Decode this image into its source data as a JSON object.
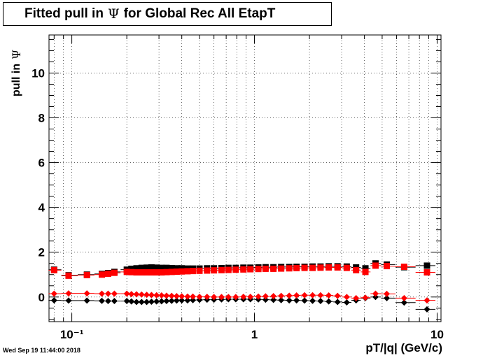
{
  "title": {
    "prefix": "Fitted pull in",
    "symbol": "Ψ",
    "suffix": "for Global Rec All EtapT"
  },
  "ylabel": {
    "text": "pull in",
    "symbol": "Ψ"
  },
  "xlabel": "pT/|q| (GeV/c)",
  "datestamp": "Wed Sep 19 11:44:00 2018",
  "colors": {
    "black_series": "#000000",
    "red_series": "#ff0000",
    "grid": "#000000"
  },
  "chart_data": {
    "type": "scatter",
    "x_scale": "log",
    "xlim": [
      0.075,
      10.5
    ],
    "ylim": [
      -1.1,
      11.7
    ],
    "grid": true,
    "x_ticks": [
      {
        "value": 0.1,
        "label": "10⁻¹"
      },
      {
        "value": 1,
        "label": "1"
      },
      {
        "value": 10,
        "label": "10"
      }
    ],
    "y_ticks": [
      {
        "value": 0,
        "label": "0"
      },
      {
        "value": 2,
        "label": "2"
      },
      {
        "value": 4,
        "label": "4"
      },
      {
        "value": 6,
        "label": "6"
      },
      {
        "value": 8,
        "label": "8"
      },
      {
        "value": 10,
        "label": "10"
      }
    ],
    "series": [
      {
        "marker": "square",
        "color": "#000000",
        "x": [
          0.08,
          0.096,
          0.121,
          0.146,
          0.158,
          0.171,
          0.2,
          0.212,
          0.226,
          0.241,
          0.257,
          0.273,
          0.291,
          0.31,
          0.33,
          0.352,
          0.375,
          0.4,
          0.43,
          0.46,
          0.5,
          0.55,
          0.6,
          0.66,
          0.72,
          0.79,
          0.87,
          0.95,
          1.05,
          1.15,
          1.27,
          1.4,
          1.55,
          1.7,
          1.88,
          2.08,
          2.3,
          2.55,
          2.85,
          3.2,
          3.6,
          4.05,
          4.6,
          5.3,
          6.6,
          8.8
        ],
        "y": [
          1.22,
          0.97,
          1.0,
          1.03,
          1.07,
          1.12,
          1.22,
          1.26,
          1.28,
          1.3,
          1.31,
          1.32,
          1.31,
          1.3,
          1.3,
          1.29,
          1.28,
          1.28,
          1.27,
          1.27,
          1.27,
          1.28,
          1.28,
          1.29,
          1.3,
          1.3,
          1.31,
          1.31,
          1.32,
          1.33,
          1.33,
          1.34,
          1.34,
          1.35,
          1.35,
          1.36,
          1.36,
          1.37,
          1.37,
          1.36,
          1.32,
          1.28,
          1.5,
          1.45,
          1.33,
          1.4
        ]
      },
      {
        "marker": "square",
        "color": "#ff0000",
        "x": [
          0.08,
          0.096,
          0.121,
          0.146,
          0.158,
          0.171,
          0.2,
          0.212,
          0.226,
          0.241,
          0.257,
          0.273,
          0.291,
          0.31,
          0.33,
          0.352,
          0.375,
          0.4,
          0.43,
          0.46,
          0.5,
          0.55,
          0.6,
          0.66,
          0.72,
          0.79,
          0.87,
          0.95,
          1.05,
          1.15,
          1.27,
          1.4,
          1.55,
          1.7,
          1.88,
          2.08,
          2.3,
          2.55,
          2.85,
          3.2,
          3.6,
          4.05,
          4.6,
          5.3,
          6.6,
          8.8
        ],
        "y": [
          1.2,
          0.95,
          0.98,
          1.0,
          1.04,
          1.08,
          1.12,
          1.11,
          1.1,
          1.1,
          1.1,
          1.1,
          1.1,
          1.1,
          1.11,
          1.12,
          1.13,
          1.14,
          1.15,
          1.16,
          1.17,
          1.18,
          1.19,
          1.2,
          1.21,
          1.22,
          1.23,
          1.24,
          1.25,
          1.26,
          1.26,
          1.27,
          1.28,
          1.29,
          1.3,
          1.3,
          1.31,
          1.32,
          1.32,
          1.3,
          1.2,
          1.12,
          1.4,
          1.38,
          1.35,
          1.1
        ]
      },
      {
        "marker": "diamond",
        "color": "#000000",
        "x": [
          0.08,
          0.096,
          0.121,
          0.146,
          0.158,
          0.171,
          0.2,
          0.212,
          0.226,
          0.241,
          0.257,
          0.273,
          0.291,
          0.31,
          0.33,
          0.352,
          0.375,
          0.4,
          0.43,
          0.46,
          0.5,
          0.55,
          0.6,
          0.66,
          0.72,
          0.79,
          0.87,
          0.95,
          1.05,
          1.15,
          1.27,
          1.4,
          1.55,
          1.7,
          1.88,
          2.08,
          2.3,
          2.55,
          2.85,
          3.2,
          3.6,
          4.05,
          4.6,
          5.3,
          6.6,
          8.8
        ],
        "y": [
          -0.15,
          -0.16,
          -0.16,
          -0.17,
          -0.18,
          -0.18,
          -0.18,
          -0.2,
          -0.22,
          -0.22,
          -0.22,
          -0.21,
          -0.2,
          -0.19,
          -0.18,
          -0.17,
          -0.16,
          -0.15,
          -0.15,
          -0.14,
          -0.13,
          -0.12,
          -0.12,
          -0.11,
          -0.1,
          -0.1,
          -0.1,
          -0.1,
          -0.11,
          -0.12,
          -0.13,
          -0.14,
          -0.15,
          -0.15,
          -0.16,
          -0.17,
          -0.18,
          -0.2,
          -0.22,
          -0.24,
          -0.15,
          -0.05,
          0.0,
          -0.05,
          -0.25,
          -0.55
        ]
      },
      {
        "marker": "diamond",
        "color": "#ff0000",
        "x": [
          0.08,
          0.096,
          0.121,
          0.146,
          0.158,
          0.171,
          0.2,
          0.212,
          0.226,
          0.241,
          0.257,
          0.273,
          0.291,
          0.31,
          0.33,
          0.352,
          0.375,
          0.4,
          0.43,
          0.46,
          0.5,
          0.55,
          0.6,
          0.66,
          0.72,
          0.79,
          0.87,
          0.95,
          1.05,
          1.15,
          1.27,
          1.4,
          1.55,
          1.7,
          1.88,
          2.08,
          2.3,
          2.55,
          2.85,
          3.2,
          3.6,
          4.05,
          4.6,
          5.3,
          6.6,
          8.8
        ],
        "y": [
          0.15,
          0.16,
          0.16,
          0.15,
          0.15,
          0.15,
          0.15,
          0.13,
          0.12,
          0.11,
          0.1,
          0.09,
          0.08,
          0.07,
          0.06,
          0.05,
          0.04,
          0.03,
          0.02,
          0.02,
          0.01,
          0.01,
          0.0,
          0.0,
          0.0,
          0.0,
          0.01,
          0.01,
          0.02,
          0.03,
          0.04,
          0.05,
          0.06,
          0.07,
          0.08,
          0.08,
          0.08,
          0.07,
          0.05,
          0.0,
          -0.05,
          -0.03,
          0.15,
          0.14,
          -0.05,
          -0.15
        ]
      }
    ]
  }
}
